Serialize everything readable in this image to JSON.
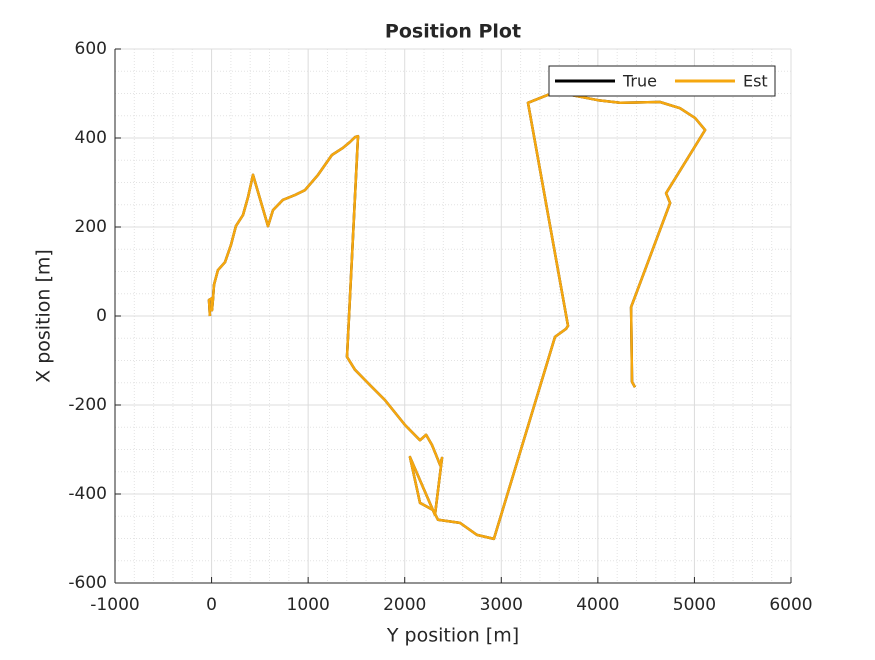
{
  "chart_data": {
    "type": "line",
    "title": "Position Plot",
    "x_label": "Y position [m]",
    "y_label": "X position [m]",
    "x": [
      -17,
      -27,
      4,
      4,
      14,
      25,
      66,
      139,
      201,
      252,
      325,
      377,
      429,
      584,
      636,
      739,
      864,
      967,
      1102,
      1247,
      1361,
      1433,
      1485,
      1516,
      1402,
      1485,
      1640,
      1796,
      2003,
      2158,
      2221,
      2283,
      2324,
      2366,
      2386,
      2314,
      2055,
      2158,
      2293,
      2345,
      2572,
      2748,
      2924,
      3556,
      3670,
      3691,
      3277,
      3484,
      3712,
      4002,
      4230,
      4644,
      4851,
      5007,
      5110,
      4707,
      4748,
      4344,
      4354,
      4385
    ],
    "series": [
      {
        "name": "True",
        "color": "#000000",
        "values": [
          0,
          36,
          40,
          13,
          36,
          70,
          103,
          121,
          160,
          202,
          227,
          267,
          317,
          202,
          238,
          261,
          272,
          283,
          317,
          362,
          378,
          391,
          402,
          404,
          -92,
          -121,
          -155,
          -189,
          -245,
          -279,
          -267,
          -290,
          -312,
          -335,
          -319,
          -447,
          -317,
          -420,
          -436,
          -458,
          -465,
          -492,
          -501,
          -47,
          -29,
          -22,
          479,
          497,
          497,
          485,
          479,
          481,
          467,
          445,
          418,
          276,
          254,
          20,
          -148,
          -160
        ]
      },
      {
        "name": "Est",
        "color": "#f5a70f",
        "values": [
          0,
          36,
          40,
          13,
          36,
          70,
          103,
          121,
          160,
          202,
          227,
          267,
          317,
          202,
          238,
          261,
          272,
          283,
          317,
          362,
          378,
          391,
          402,
          404,
          -92,
          -121,
          -155,
          -189,
          -245,
          -279,
          -267,
          -290,
          -312,
          -335,
          -319,
          -447,
          -317,
          -420,
          -436,
          -458,
          -465,
          -492,
          -501,
          -47,
          -29,
          -22,
          479,
          497,
          497,
          485,
          479,
          481,
          467,
          445,
          418,
          276,
          254,
          20,
          -148,
          -160
        ]
      }
    ],
    "xlim": [
      -1000,
      6000
    ],
    "xticks": [
      -1000,
      0,
      1000,
      2000,
      3000,
      4000,
      5000,
      6000
    ],
    "ylim": [
      -600,
      600
    ],
    "yticks": [
      -600,
      -400,
      -200,
      0,
      200,
      400,
      600
    ],
    "grid": true,
    "minor_grid": true,
    "legend_position": "top-right"
  }
}
